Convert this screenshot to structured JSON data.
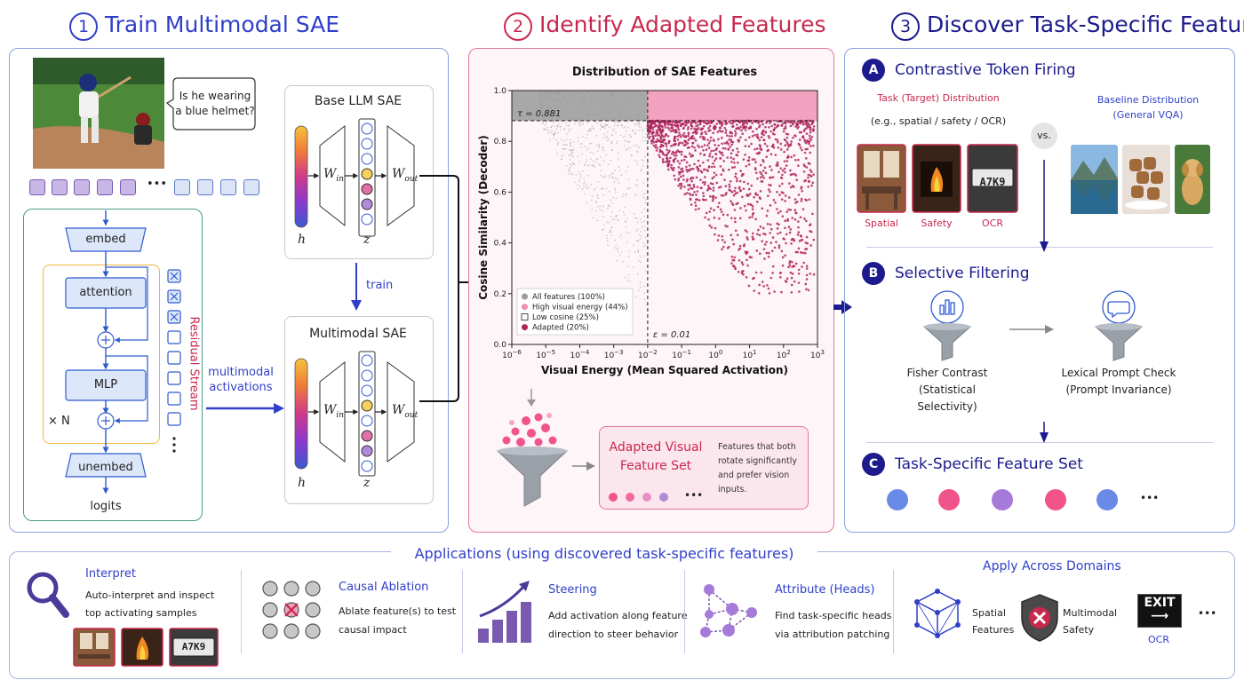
{
  "sections": {
    "s1": {
      "num": "1",
      "title": "Train Multimodal SAE"
    },
    "s2": {
      "num": "2",
      "title": "Identify Adapted Features"
    },
    "s3": {
      "num": "3",
      "title": "Discover Task-Specific Features"
    }
  },
  "panel1": {
    "question": "Is he wearing a blue helmet?",
    "question_l1": "Is he wearing",
    "question_l2": "a blue helmet?",
    "ellipsis": "•••",
    "llm": {
      "embed": "embed",
      "attention": "attention",
      "mlp": "MLP",
      "unembed": "unembed",
      "logits": "logits",
      "repeat": "× N",
      "residual": "Residual Stream"
    },
    "base_sae": {
      "title": "Base LLM SAE",
      "w_in": "W",
      "w_in_sub": "in",
      "w_out": "W",
      "w_out_sub": "out",
      "h": "h",
      "z": "z"
    },
    "train_label": "train",
    "mm_activations_l1": "multimodal",
    "mm_activations_l2": "activations",
    "mm_sae": {
      "title": "Multimodal SAE",
      "w_in": "W",
      "w_in_sub": "in",
      "w_out": "W",
      "w_out_sub": "out",
      "h": "h",
      "z": "z"
    }
  },
  "panel2": {
    "adapted_title_l1": "Adapted Visual",
    "adapted_title_l2": "Feature Set",
    "adapted_desc_l1": "Features that both",
    "adapted_desc_l2": "rotate significantly",
    "adapted_desc_l3": "and prefer vision inputs.",
    "ellipsis": "•••"
  },
  "chart_data": {
    "type": "scatter",
    "title": "Distribution of SAE Features",
    "xlabel": "Visual Energy (Mean Squared Activation)",
    "ylabel": "Cosine Similarity (Decoder)",
    "x_scale": "log",
    "xlim": [
      1e-06,
      1000
    ],
    "ylim": [
      0.0,
      1.0
    ],
    "x_tick_exponents": [
      -6,
      -5,
      -4,
      -3,
      -2,
      -1,
      0,
      1,
      2,
      3
    ],
    "y_ticks": [
      "0.0",
      "0.2",
      "0.4",
      "0.6",
      "0.8",
      "1.0"
    ],
    "y_tick_values": [
      0.0,
      0.2,
      0.4,
      0.6,
      0.8,
      1.0
    ],
    "tau": 0.881,
    "tau_label": "τ = 0.881",
    "epsilon": 0.01,
    "epsilon_label": "ε = 0.01",
    "legend_position": "lower-left",
    "series": [
      {
        "name": "All features (100%)",
        "color": "#9a9a9a",
        "marker": "circle"
      },
      {
        "name": "High visual energy (44%)",
        "color": "#f08db0",
        "marker": "circle"
      },
      {
        "name": "Low cosine (25%)",
        "color": "#ffffff",
        "marker": "square"
      },
      {
        "name": "Adapted (20%)",
        "color": "#b0245e",
        "marker": "circle"
      }
    ]
  },
  "panel3": {
    "A": {
      "badge": "A",
      "title": "Contrastive Token Firing",
      "task_title": "Task (Target) Distribution",
      "task_sub": "(e.g., spatial / safety / OCR)",
      "baseline_l1": "Baseline Distribution",
      "baseline_l2": "(General VQA)",
      "vs": "vs.",
      "labels": [
        "Spatial",
        "Safety",
        "OCR"
      ],
      "plate": "A7K9"
    },
    "B": {
      "badge": "B",
      "title": "Selective Filtering",
      "fisher_l1": "Fisher Contrast",
      "fisher_l2": "(Statistical",
      "fisher_l3": "Selectivity)",
      "lexical_l1": "Lexical Prompt Check",
      "lexical_l2": "(Prompt Invariance)"
    },
    "C": {
      "badge": "C",
      "title": "Task-Specific Feature Set",
      "ellipsis": "•••"
    }
  },
  "applications": {
    "title": "Applications (using discovered task-specific features)",
    "interpret": {
      "title": "Interpret",
      "l1": "Auto-interpret and inspect",
      "l2": "top activating samples",
      "plate": "A7K9"
    },
    "ablation": {
      "title": "Causal Ablation",
      "l1": "Ablate feature(s) to test",
      "l2": "causal impact"
    },
    "steering": {
      "title": "Steering",
      "l1": "Add activation along feature",
      "l2": "direction to steer behavior"
    },
    "attribute": {
      "title": "Attribute (Heads)",
      "l1": "Find task-specific heads",
      "l2": "via attribution patching"
    },
    "domains": {
      "title": "Apply Across Domains",
      "spatial_l1": "Spatial",
      "spatial_l2": "Features",
      "safety_l1": "Multimodal",
      "safety_l2": "Safety",
      "ocr": "OCR",
      "exit": "EXIT",
      "ellipsis": "•••"
    }
  },
  "colors": {
    "blue": "#2f3fc8",
    "pink": "#c8284f",
    "navy": "#1c1a8c",
    "panel1_border": "#8aa0e0",
    "panel2_border": "#e07a96",
    "adapted": "#b0245e"
  }
}
